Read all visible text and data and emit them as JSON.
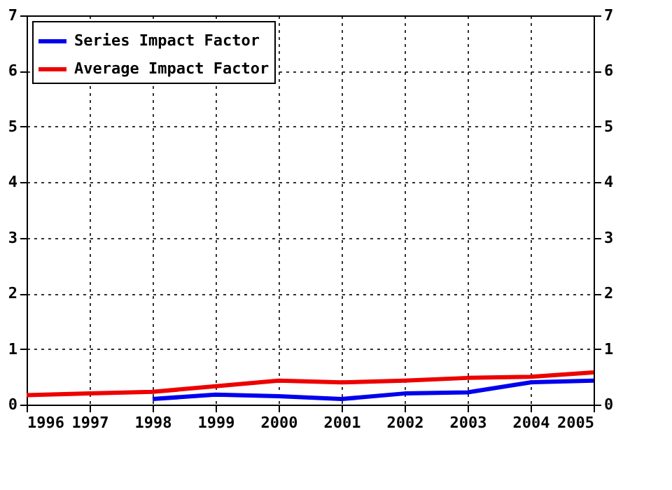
{
  "chart_data": {
    "type": "line",
    "x": [
      1996,
      1997,
      1998,
      1999,
      2000,
      2001,
      2002,
      2003,
      2004,
      2005
    ],
    "series": [
      {
        "name": "Series Impact Factor",
        "color": "#0000ee",
        "values": [
          null,
          null,
          0.1,
          0.18,
          0.15,
          0.1,
          0.2,
          0.22,
          0.4,
          0.43
        ]
      },
      {
        "name": "Average Impact Factor",
        "color": "#ee0000",
        "values": [
          0.17,
          0.2,
          0.23,
          0.33,
          0.43,
          0.4,
          0.43,
          0.48,
          0.5,
          0.58
        ]
      }
    ],
    "xlim": [
      1996,
      2005
    ],
    "xticks": [
      1996,
      1997,
      1998,
      1999,
      2000,
      2001,
      2002,
      2003,
      2004,
      2005
    ],
    "ylim": [
      0,
      7
    ],
    "yticks": [
      0,
      1,
      2,
      3,
      4,
      5,
      6,
      7
    ],
    "y2lim": [
      0,
      7
    ],
    "y2ticks": [
      0,
      1,
      2,
      3,
      4,
      5,
      6,
      7
    ],
    "grid": true,
    "legend": "top left",
    "line_style": "solid",
    "marker": "none"
  }
}
